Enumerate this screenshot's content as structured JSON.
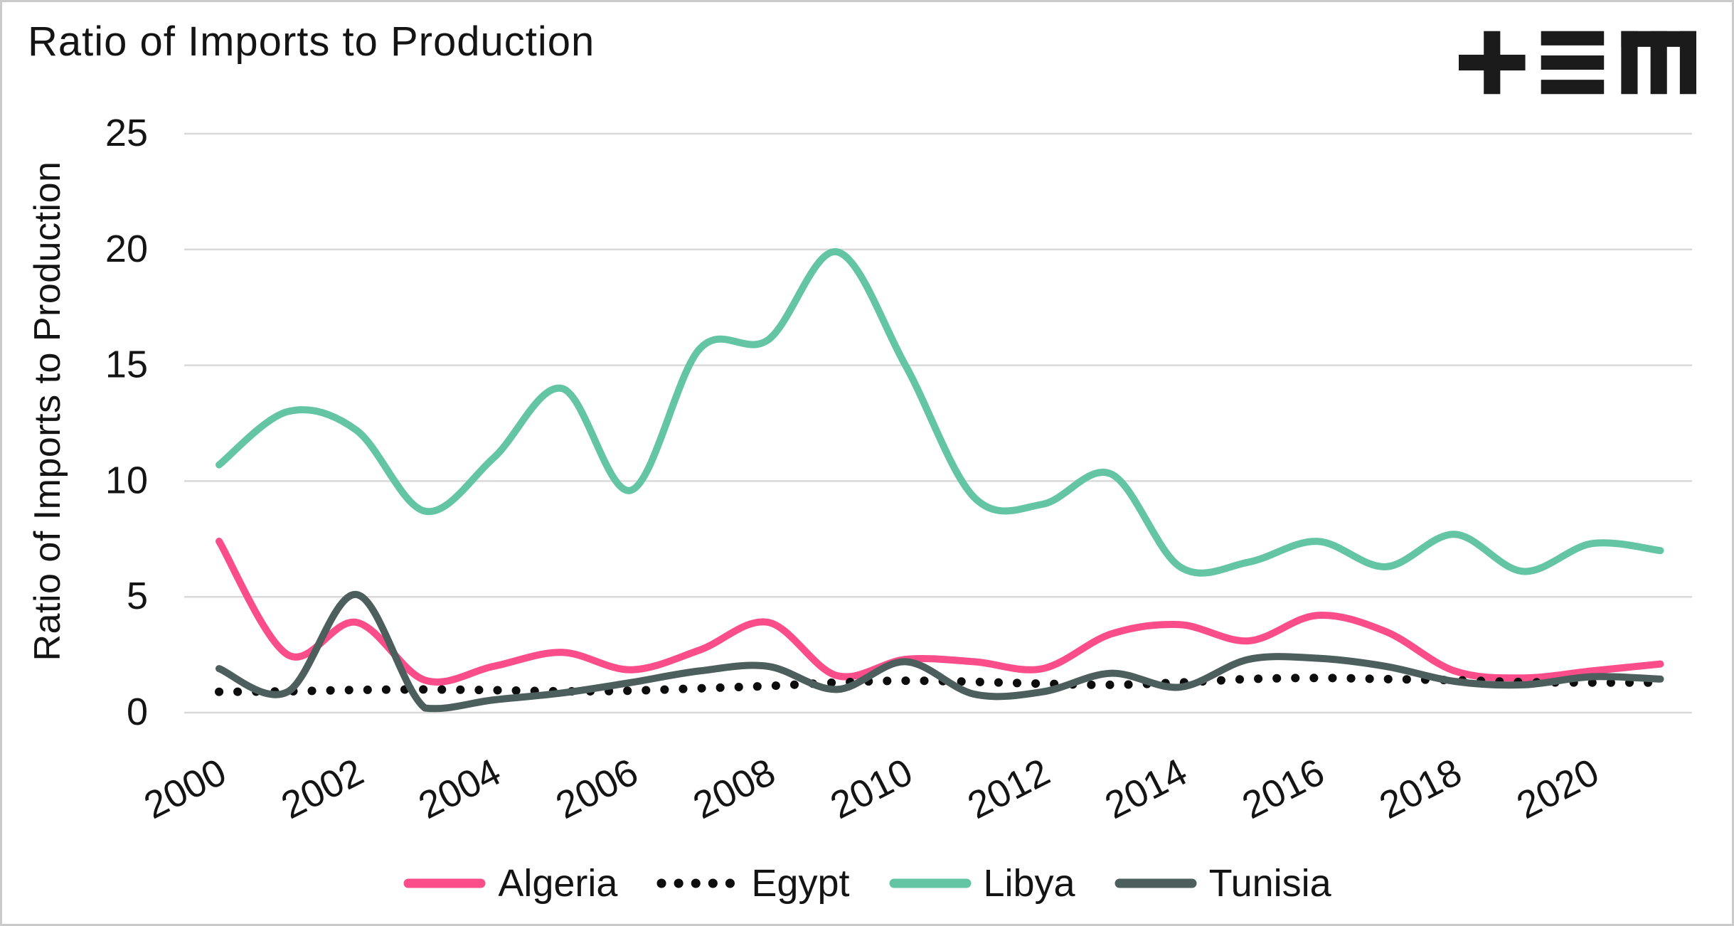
{
  "title": "Ratio of Imports to Production",
  "logo": {
    "name": "plus-bars-m-logo",
    "color": "#1b1b1b"
  },
  "colors": {
    "algeria": "#FB4D8A",
    "egypt": "#0d0d0d",
    "libya": "#63C5A4",
    "tunisia": "#4D5F5D",
    "gridline": "#d9d9d9",
    "text": "#141414",
    "background": "#ffffff"
  },
  "chart_data": {
    "type": "line",
    "title": "Ratio of Imports to Production",
    "xlabel": "",
    "ylabel": "Ratio of Imports to Production",
    "ylim": [
      0,
      25
    ],
    "yticks": [
      0,
      5,
      10,
      15,
      20,
      25
    ],
    "xticks": [
      2000,
      2002,
      2004,
      2006,
      2008,
      2010,
      2012,
      2014,
      2016,
      2018,
      2020
    ],
    "grid": "horizontal-only",
    "legend_position": "bottom-center",
    "x": [
      2000,
      2001,
      2002,
      2003,
      2004,
      2005,
      2006,
      2007,
      2008,
      2009,
      2010,
      2011,
      2012,
      2013,
      2014,
      2015,
      2016,
      2017,
      2018,
      2019,
      2020,
      2021
    ],
    "series": [
      {
        "name": "Algeria",
        "color": "#FB4D8A",
        "style": "solid",
        "values": [
          7.4,
          2.5,
          3.9,
          1.4,
          2.0,
          2.6,
          1.85,
          2.7,
          3.9,
          1.6,
          2.3,
          2.2,
          1.9,
          3.4,
          3.8,
          3.1,
          4.2,
          3.5,
          1.8,
          1.5,
          1.8,
          2.1
        ]
      },
      {
        "name": "Egypt",
        "color": "#0d0d0d",
        "style": "dotted",
        "values": [
          0.9,
          0.92,
          0.98,
          1.0,
          0.97,
          0.92,
          0.95,
          1.05,
          1.15,
          1.3,
          1.38,
          1.33,
          1.25,
          1.2,
          1.3,
          1.45,
          1.5,
          1.45,
          1.4,
          1.32,
          1.3,
          1.3
        ]
      },
      {
        "name": "Libya",
        "color": "#63C5A4",
        "style": "solid",
        "values": [
          10.7,
          13.0,
          12.2,
          8.7,
          11.0,
          14.0,
          9.6,
          15.7,
          16.1,
          19.9,
          15.0,
          9.3,
          9.0,
          10.3,
          6.3,
          6.5,
          7.4,
          6.3,
          7.7,
          6.1,
          7.3,
          7.0
        ]
      },
      {
        "name": "Tunisia",
        "color": "#4D5F5D",
        "style": "solid",
        "values": [
          1.9,
          0.9,
          5.1,
          0.2,
          0.55,
          0.85,
          1.3,
          1.8,
          2.0,
          1.0,
          2.2,
          0.8,
          0.9,
          1.7,
          1.1,
          2.3,
          2.35,
          2.0,
          1.35,
          1.2,
          1.55,
          1.45
        ]
      }
    ]
  }
}
